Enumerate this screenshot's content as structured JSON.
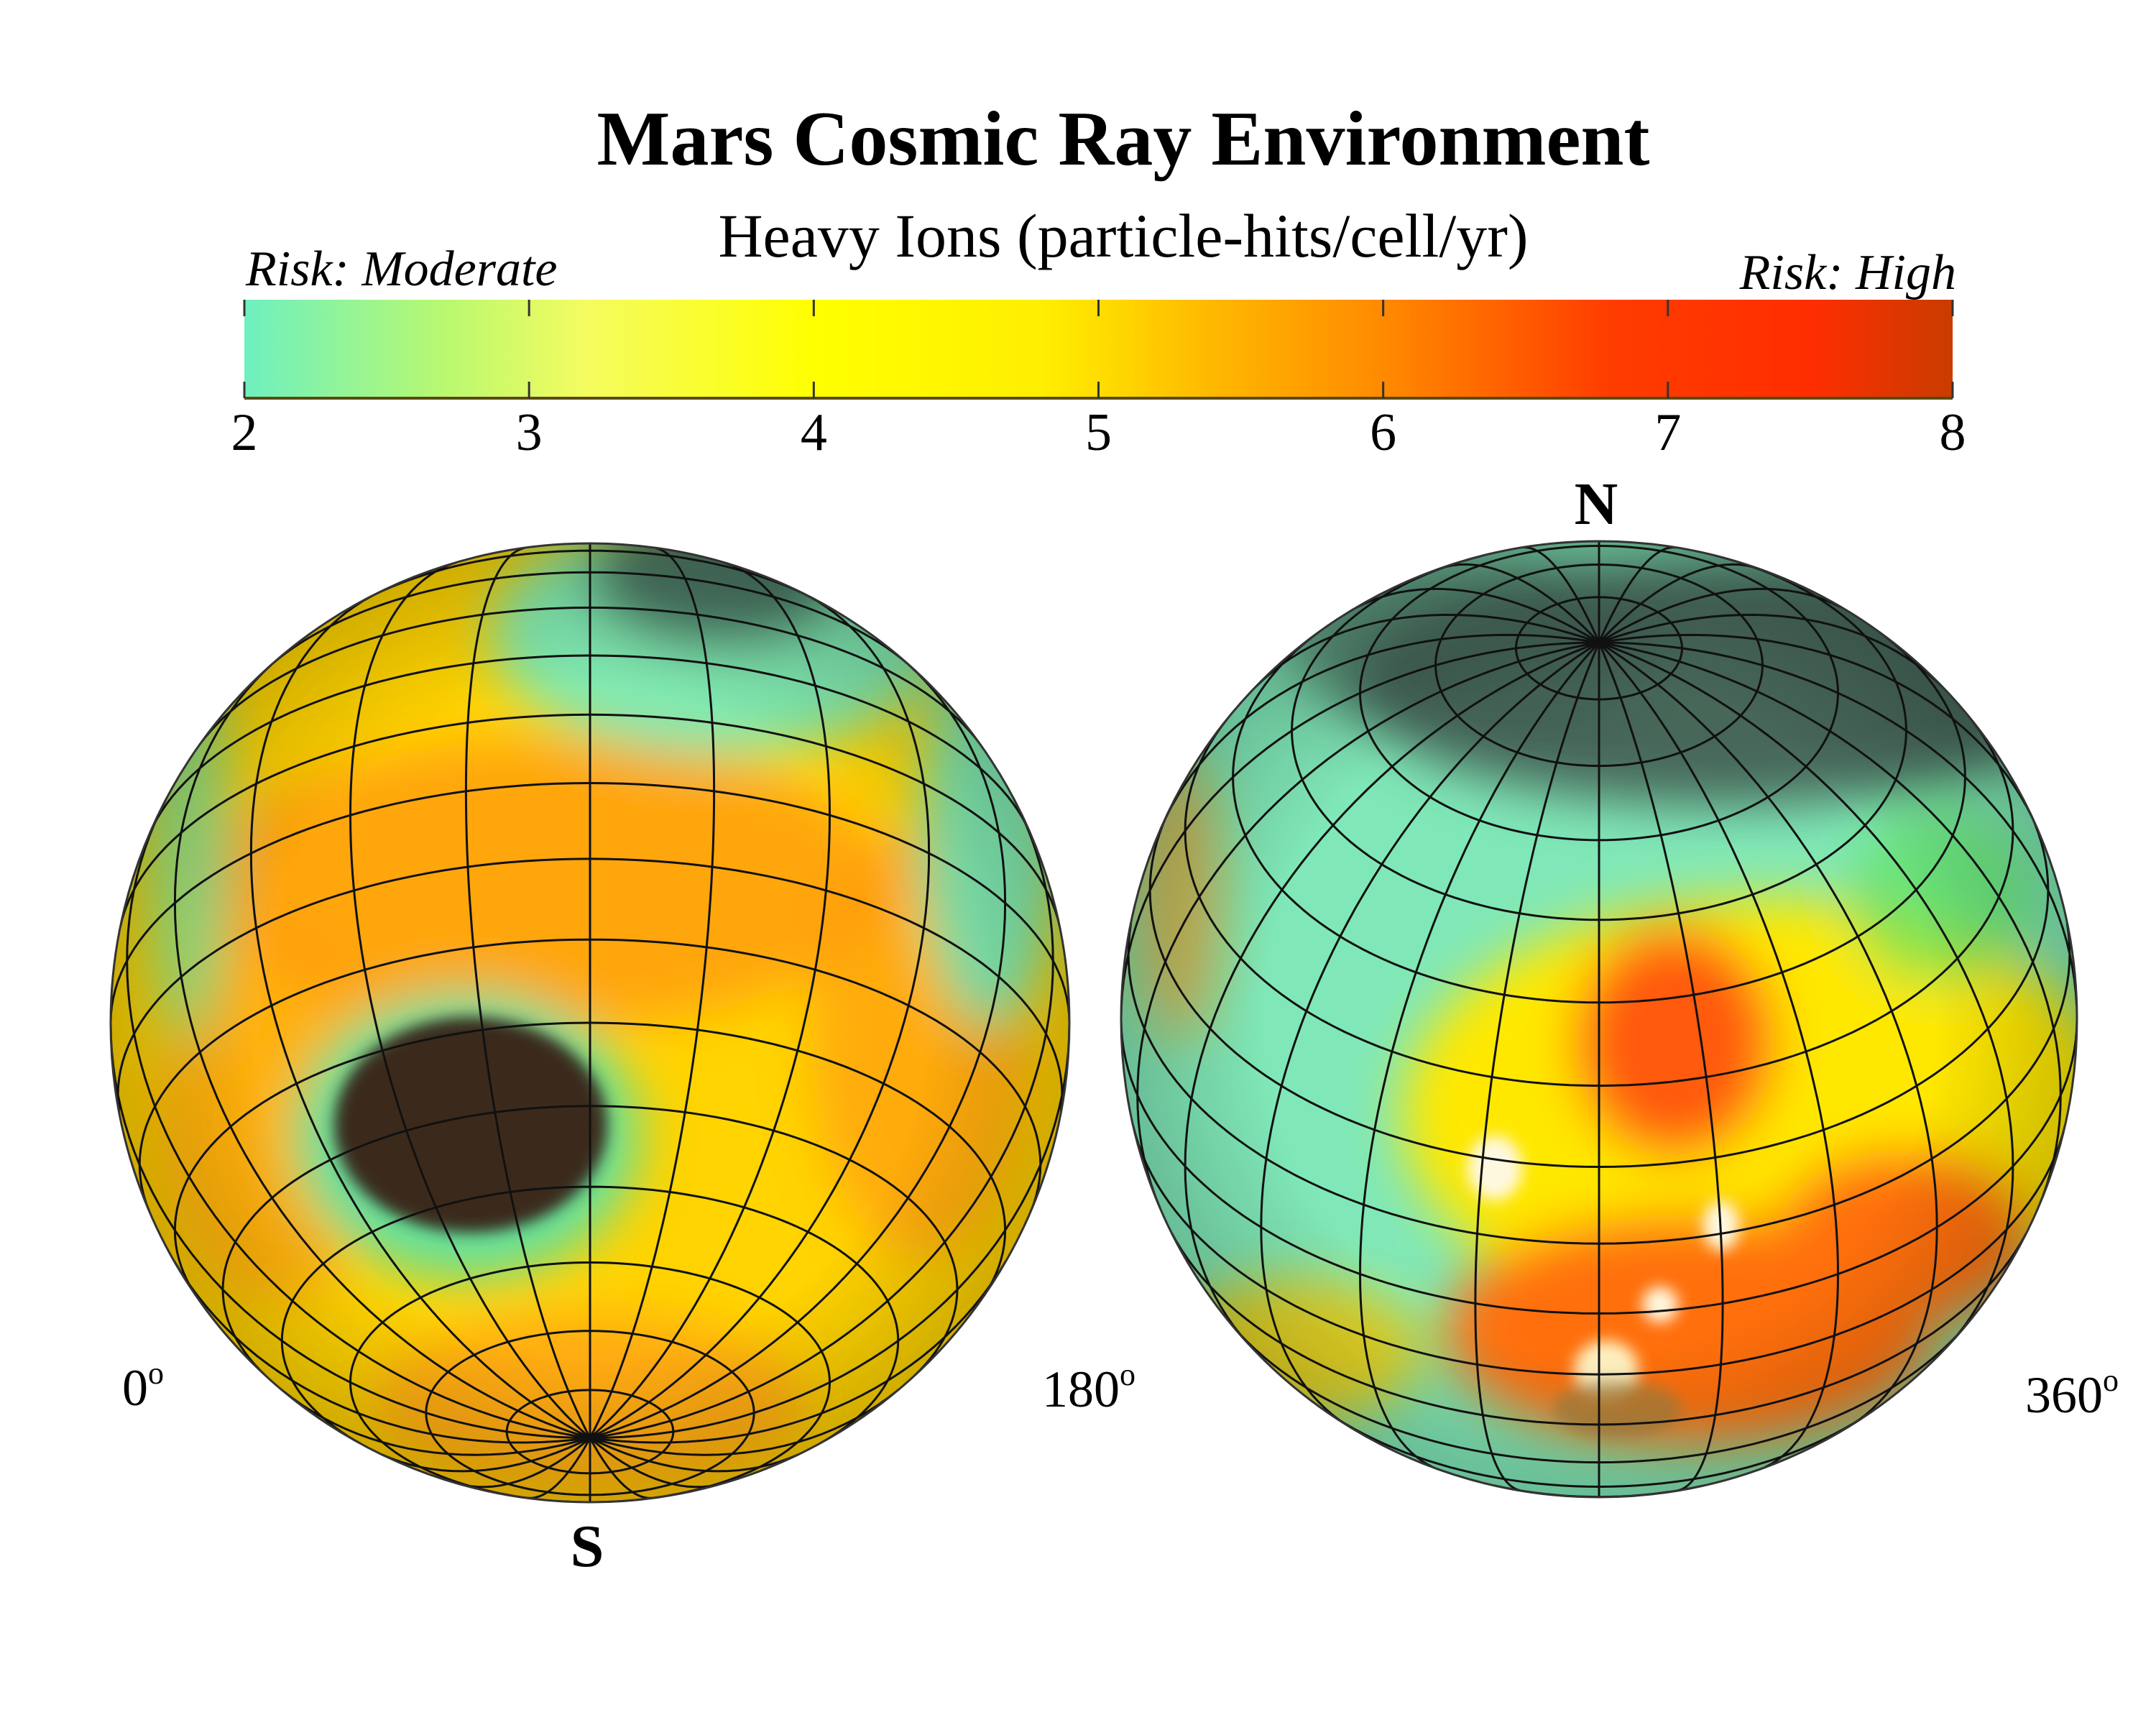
{
  "chart_data": {
    "type": "heatmap",
    "title": "Mars Cosmic Ray Environment",
    "subtitle": "Heavy Ions (particle-hits/cell/yr)",
    "colorbar": {
      "range": [
        2,
        8
      ],
      "ticks": [
        "2",
        "3",
        "4",
        "5",
        "6",
        "7",
        "8"
      ],
      "low_label": "Risk: Moderate",
      "high_label": "Risk: High",
      "color_stops": [
        {
          "value": 2,
          "color": "#6ef0c0"
        },
        {
          "value": 2.7,
          "color": "#b8f870"
        },
        {
          "value": 3.2,
          "color": "#f4fc60"
        },
        {
          "value": 4,
          "color": "#ffff00"
        },
        {
          "value": 4.8,
          "color": "#ffef00"
        },
        {
          "value": 5.4,
          "color": "#ffb800"
        },
        {
          "value": 6,
          "color": "#ff8a00"
        },
        {
          "value": 6.8,
          "color": "#ff3c00"
        },
        {
          "value": 7.5,
          "color": "#ff2e00"
        },
        {
          "value": 8,
          "color": "#c83c00"
        }
      ]
    },
    "globes": [
      {
        "name": "southern-hemisphere",
        "pole_label": "S",
        "left_label": "0",
        "right_label": "180",
        "degree_mark": "o"
      },
      {
        "name": "northern-hemisphere",
        "pole_label": "N",
        "right_label": "360",
        "degree_mark": "o"
      }
    ]
  }
}
